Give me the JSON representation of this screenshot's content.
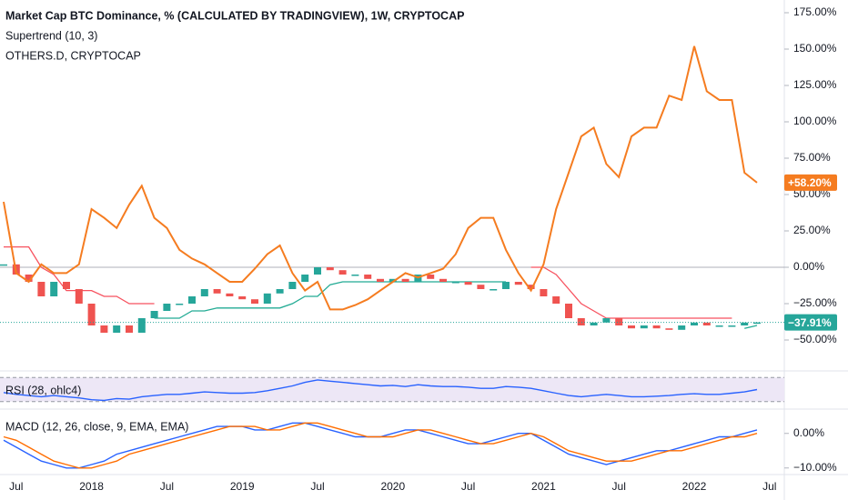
{
  "chart_data": [
    {
      "type": "line",
      "categories": [
        null,
        "Jul",
        null,
        null,
        null,
        null,
        null,
        "2018",
        null,
        null,
        null,
        null,
        null,
        "Jul",
        null,
        null,
        null,
        null,
        null,
        "2019",
        null,
        null,
        null,
        null,
        null,
        "Jul",
        null,
        null,
        null,
        null,
        null,
        "2020",
        null,
        null,
        null,
        null,
        null,
        "Jul",
        null,
        null,
        null,
        null,
        null,
        "2021",
        null,
        null,
        null,
        null,
        null,
        "Jul",
        null,
        null,
        null,
        null,
        null,
        "2022",
        null,
        null,
        null,
        null,
        null,
        "Jul"
      ],
      "ylim": [
        -71.25,
        183.75
      ],
      "yticks": [
        {
          "value": 175,
          "label": "175.00%"
        },
        {
          "value": 150,
          "label": "150.00%"
        },
        {
          "value": 125,
          "label": "125.00%"
        },
        {
          "value": 100,
          "label": "100.00%"
        },
        {
          "value": 75,
          "label": "75.00%"
        },
        {
          "value": 50,
          "label": "50.00%"
        },
        {
          "value": 25,
          "label": "25.00%"
        },
        {
          "value": 0,
          "label": "0.00%"
        },
        {
          "value": -25,
          "label": "−25.00%"
        },
        {
          "value": -50,
          "label": "−50.00%"
        }
      ],
      "baseline": 0,
      "series": [
        {
          "name": "Market Cap BTC Dominance, % (CALCULATED BY TRADINGVIEW), 1W, CRYPTOCAP",
          "style": "candle",
          "up_color": "#26a69a",
          "down_color": "#ef5350",
          "last_label": "−37.91%",
          "values": [
            2,
            -5,
            -10,
            -20,
            -10,
            -15,
            -25,
            -40,
            -45,
            -40,
            -45,
            -35,
            -30,
            -25,
            -25,
            -20,
            -15,
            -18,
            -20,
            -22,
            -25,
            -18,
            -15,
            -10,
            -5,
            0,
            -2,
            -5,
            -5,
            -8,
            -10,
            -8,
            -10,
            -5,
            -8,
            -10,
            -10,
            -12,
            -15,
            -15,
            -10,
            -12,
            -15,
            -20,
            -25,
            -35,
            -40,
            -38,
            -35,
            -40,
            -42,
            -40,
            -42,
            -43,
            -40,
            -38,
            -40,
            -40,
            -40,
            -38,
            -37.91,
            null
          ]
        },
        {
          "name": "OTHERS.D, CRYPTOCAP",
          "style": "line",
          "color": "#f57c20",
          "last_label": "+58.20%",
          "values": [
            45,
            -4,
            -10,
            2,
            -4,
            -4,
            2,
            40,
            34,
            27,
            43,
            56,
            34,
            27,
            12,
            6,
            2,
            -4,
            -10,
            -10,
            -1,
            9,
            15,
            -4,
            -16,
            -10,
            -29,
            -29,
            -26,
            -22,
            -16,
            -10,
            -4,
            -7,
            -4,
            -1,
            9,
            27,
            34,
            34,
            12,
            -4,
            -16,
            2,
            40,
            65,
            90,
            96,
            71,
            62,
            90,
            96,
            96,
            118,
            115,
            152,
            121,
            115,
            115,
            65,
            58.2,
            null
          ]
        }
      ],
      "supertrend": {
        "name": "Supertrend (10, 3)",
        "up_color": "#22ab94",
        "down_color": "#f7525f",
        "down": [
          14,
          14,
          14,
          0,
          -5,
          -16,
          -16,
          -16,
          -20,
          -20,
          -25,
          -25,
          -25,
          null,
          null,
          null,
          null,
          null,
          null,
          null,
          null,
          null,
          null,
          null,
          null,
          null,
          null,
          null,
          null,
          null,
          null,
          null,
          null,
          null,
          null,
          null,
          null,
          null,
          null,
          null,
          null,
          null,
          0,
          0,
          -5,
          -15,
          -25,
          -30,
          -35,
          -35,
          -35,
          -35,
          -35,
          -35,
          -35,
          -35,
          -35,
          -35,
          -35,
          null,
          null,
          null
        ],
        "up": [
          null,
          null,
          null,
          null,
          null,
          null,
          null,
          null,
          null,
          null,
          null,
          null,
          -35,
          -35,
          -35,
          -30,
          -30,
          -28,
          -28,
          -28,
          -28,
          -28,
          -28,
          -25,
          -20,
          -20,
          -12,
          -10,
          -10,
          -10,
          -10,
          -10,
          -10,
          -10,
          -10,
          -10,
          -10,
          -10,
          -10,
          -10,
          -10,
          null,
          null,
          null,
          null,
          null,
          null,
          null,
          null,
          null,
          null,
          null,
          null,
          null,
          null,
          null,
          null,
          null,
          null,
          -42,
          -40,
          null
        ]
      }
    },
    {
      "type": "line",
      "title": "RSI (28, ohlc4)",
      "ylim": [
        25,
        75
      ],
      "bands": [
        70,
        30
      ],
      "band_color": "#9598a1",
      "band_fill": "#ede7f6",
      "series": [
        {
          "color": "#2962ff",
          "values": [
            45,
            42,
            40,
            38,
            40,
            38,
            36,
            33,
            32,
            35,
            34,
            38,
            40,
            42,
            42,
            44,
            46,
            45,
            44,
            44,
            45,
            48,
            52,
            56,
            62,
            66,
            64,
            62,
            60,
            58,
            56,
            57,
            55,
            58,
            56,
            55,
            55,
            54,
            52,
            52,
            55,
            54,
            52,
            48,
            44,
            40,
            38,
            40,
            42,
            40,
            38,
            38,
            39,
            40,
            42,
            43,
            42,
            42,
            44,
            46,
            50,
            null
          ]
        }
      ]
    },
    {
      "type": "line",
      "title": "MACD (12, 26, close, 9, EMA, EMA)",
      "ylim": [
        -11.9,
        6.5
      ],
      "yticks": [
        {
          "value": 0,
          "label": "0.00%"
        },
        {
          "value": -10,
          "label": "−10.00%"
        }
      ],
      "series": [
        {
          "color": "#2962ff",
          "values": [
            -2,
            -4,
            -6,
            -8,
            -9,
            -10,
            -10,
            -9,
            -8,
            -6,
            -5,
            -4,
            -3,
            -2,
            -1,
            0,
            1,
            2,
            2,
            2,
            1,
            1,
            2,
            3,
            3,
            2,
            1,
            0,
            -1,
            -1,
            -1,
            0,
            1,
            1,
            0,
            -1,
            -2,
            -3,
            -3,
            -2,
            -1,
            0,
            0,
            -2,
            -4,
            -6,
            -7,
            -8,
            -9,
            -8,
            -7,
            -6,
            -5,
            -5,
            -4,
            -3,
            -2,
            -1,
            -1,
            0,
            1,
            null
          ]
        },
        {
          "color": "#ff6d00",
          "values": [
            -1,
            -2,
            -4,
            -6,
            -8,
            -9,
            -10,
            -10,
            -9,
            -8,
            -6,
            -5,
            -4,
            -3,
            -2,
            -1,
            0,
            1,
            2,
            2,
            2,
            1,
            1,
            2,
            3,
            3,
            2,
            1,
            0,
            -1,
            -1,
            -1,
            0,
            1,
            1,
            0,
            -1,
            -2,
            -3,
            -3,
            -2,
            -1,
            0,
            -1,
            -3,
            -5,
            -6,
            -7,
            -8,
            -8,
            -8,
            -7,
            -6,
            -5,
            -5,
            -4,
            -3,
            -2,
            -1,
            -1,
            0,
            null
          ]
        }
      ]
    }
  ]
}
